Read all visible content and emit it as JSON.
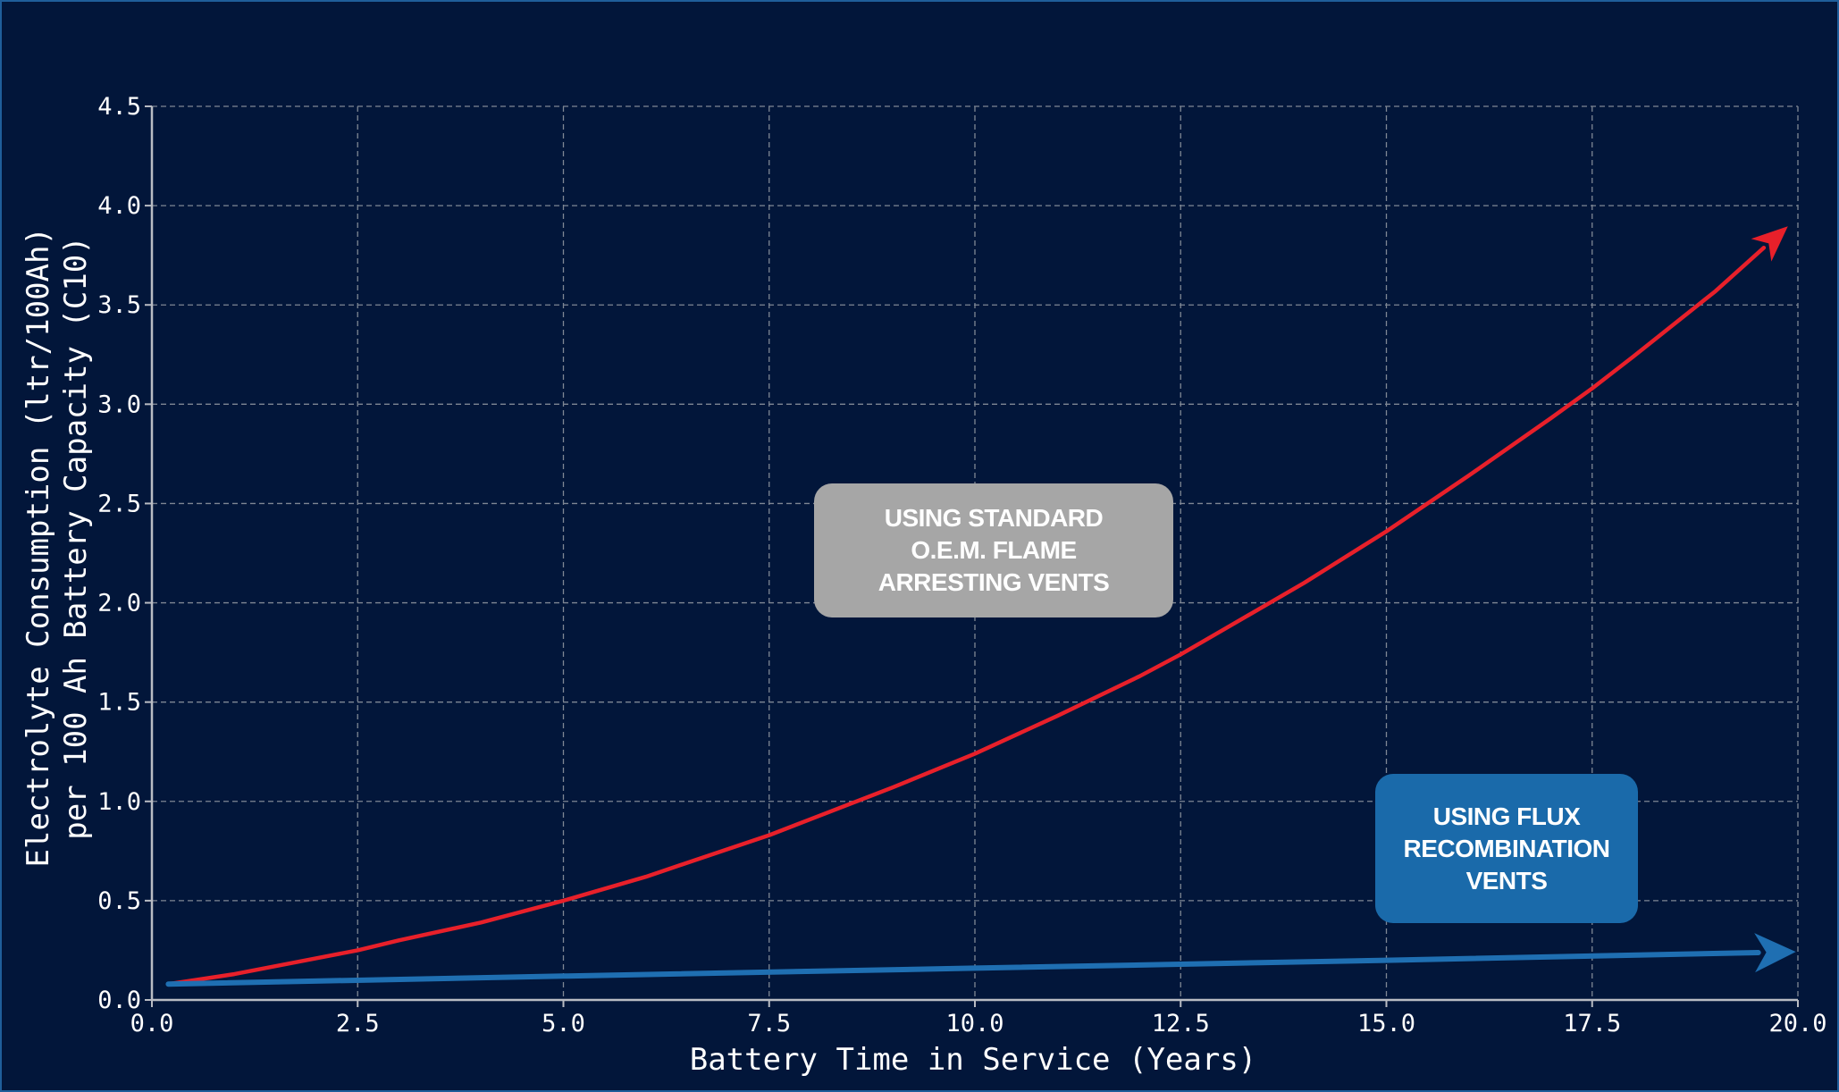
{
  "chart_data": {
    "type": "line",
    "xlabel": "Battery Time in Service (Years)",
    "ylabel_lines": [
      "Electrolyte Consumption (ltr/100Ah)",
      "per 100 Ah Battery Capacity (C10)"
    ],
    "xlim": [
      0.0,
      20.0
    ],
    "ylim": [
      0.0,
      4.5
    ],
    "x_ticks": [
      "0.0",
      "2.5",
      "5.0",
      "7.5",
      "10.0",
      "12.5",
      "15.0",
      "17.5",
      "20.0"
    ],
    "y_ticks": [
      "0.0",
      "0.5",
      "1.0",
      "1.5",
      "2.0",
      "2.5",
      "3.0",
      "3.5",
      "4.0",
      "4.5"
    ],
    "grid": true,
    "series": [
      {
        "color": "#e8202a",
        "arrow_end": true,
        "x": [
          0.2,
          1,
          2,
          2.5,
          3,
          4,
          5,
          6,
          7,
          7.5,
          8,
          9,
          10,
          11,
          12,
          12.5,
          13,
          14,
          15,
          16,
          17,
          17.5,
          18,
          19,
          19.7
        ],
        "y": [
          0.08,
          0.13,
          0.21,
          0.25,
          0.3,
          0.39,
          0.5,
          0.62,
          0.76,
          0.83,
          0.91,
          1.07,
          1.24,
          1.43,
          1.63,
          1.74,
          1.86,
          2.1,
          2.36,
          2.64,
          2.93,
          3.08,
          3.24,
          3.57,
          3.83
        ]
      },
      {
        "color": "#1f6fb2",
        "arrow_end": true,
        "x": [
          0.2,
          5,
          10,
          15,
          19.7
        ],
        "y": [
          0.08,
          0.12,
          0.16,
          0.2,
          0.24
        ]
      }
    ],
    "annotations": [
      {
        "lines": [
          "USING STANDARD",
          "O.E.M. FLAME",
          "ARRESTING VENTS"
        ],
        "color": "#a6a6a6"
      },
      {
        "lines": [
          "USING FLUX",
          "RECOMBINATION",
          "VENTS"
        ],
        "color": "#1a6aaa"
      }
    ],
    "colors": {
      "background": "#02163a",
      "grid": "#7f8794",
      "axis": "#b9bcc3",
      "text": "#ffffff"
    }
  }
}
